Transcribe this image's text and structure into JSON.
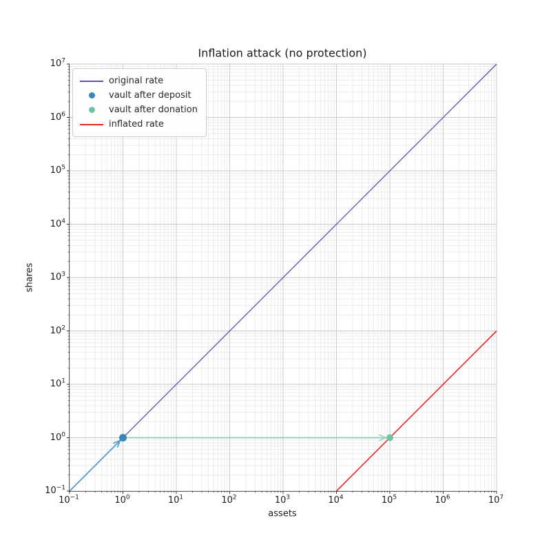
{
  "title": "Inflation attack (no protection)",
  "axes": {
    "xlabel": "assets",
    "ylabel": "shares"
  },
  "legend": {
    "entries": [
      {
        "label": "original rate",
        "marker": "line",
        "color": "#5c52a5"
      },
      {
        "label": "vault after deposit",
        "marker": "dot",
        "color": "#3787b8"
      },
      {
        "label": "vault after donation",
        "marker": "dot",
        "color": "#6cc5a0"
      },
      {
        "label": "inflated rate",
        "marker": "line",
        "color": "#ef2222"
      }
    ]
  },
  "chart_data": {
    "type": "line",
    "title": "Inflation attack (no protection)",
    "xlabel": "assets",
    "ylabel": "shares",
    "xscale": "log",
    "yscale": "log",
    "xlim": [
      0.1,
      10000000
    ],
    "ylim": [
      0.1,
      10000000
    ],
    "grid": "major+minor",
    "legend_position": "upper left",
    "x_tick_exponents": [
      -1,
      0,
      1,
      2,
      3,
      4,
      5,
      6,
      7
    ],
    "y_tick_exponents": [
      -1,
      0,
      1,
      2,
      3,
      4,
      5,
      6,
      7
    ],
    "series": [
      {
        "name": "original rate",
        "kind": "line",
        "color": "#5c52a5",
        "width": 1.3,
        "points": [
          [
            0.1,
            0.1
          ],
          [
            10000000,
            10000000
          ]
        ]
      },
      {
        "name": "inflated rate",
        "kind": "line",
        "color": "#ef2222",
        "width": 1.6,
        "points": [
          [
            10000,
            0.1
          ],
          [
            10000000,
            100
          ]
        ]
      },
      {
        "name": "vault after deposit",
        "kind": "scatter",
        "color": "#3787b8",
        "radius": 5.5,
        "points": [
          [
            1,
            1
          ]
        ]
      },
      {
        "name": "vault after donation",
        "kind": "scatter",
        "color": "#6cc5a0",
        "radius": 5,
        "points": [
          [
            100000,
            1
          ]
        ]
      }
    ],
    "annotations": [
      {
        "name": "deposit-arrow",
        "color": "#4f9fce",
        "width": 1.8,
        "opacity": 0.95,
        "from": [
          0.1,
          0.1
        ],
        "to": [
          1,
          1
        ],
        "tip_gap": 6
      },
      {
        "name": "donation-arrow",
        "color": "#66c2a5",
        "width": 2.0,
        "opacity": 0.55,
        "from": [
          1,
          1
        ],
        "to": [
          100000,
          1
        ],
        "tip_gap": 6
      }
    ],
    "colors": {
      "grid_major": "#c6c6c6",
      "grid_minor": "#e8e8e8",
      "spine": "#000000",
      "tick": "#262626"
    }
  }
}
